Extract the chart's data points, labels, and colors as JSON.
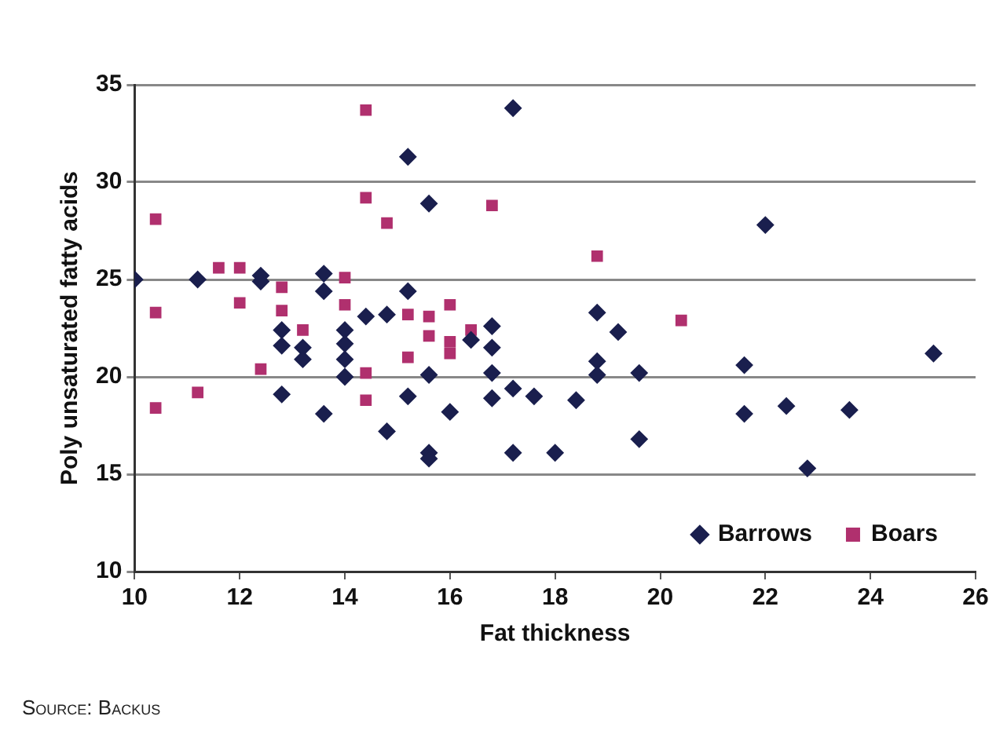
{
  "chart_data": {
    "type": "scatter",
    "xlabel": "Fat thickness",
    "ylabel": "Poly unsaturated fatty acids",
    "xlim": [
      10,
      26
    ],
    "xticks": [
      10,
      12,
      14,
      16,
      18,
      20,
      22,
      24,
      26
    ],
    "ylim": [
      10,
      35
    ],
    "yticks": [
      10,
      15,
      20,
      25,
      30,
      35
    ],
    "grid": "y",
    "legend": "bottom right",
    "annotations": [
      "Source: Backus"
    ],
    "series": [
      {
        "name": "Barrows",
        "color": "#1a1f4e",
        "marker": "diamond",
        "x": [
          10,
          11.2,
          12.4,
          12.4,
          13.6,
          13.6,
          15.2,
          15.6,
          15.2,
          14.4,
          14.8,
          12.8,
          12.8,
          13.2,
          13.2,
          14,
          14,
          14,
          14,
          15.6,
          12.8,
          13.6,
          14.8,
          15.2,
          15.6,
          15.6,
          16,
          17.2,
          18.8,
          16.8,
          16.8,
          16.4,
          19.2,
          18.8,
          18.8,
          19.6,
          16.8,
          17.2,
          16.8,
          17.6,
          18.4,
          17.2,
          18,
          19.6,
          22,
          21.6,
          25.2,
          21.6,
          22.4,
          23.6,
          22.8
        ],
        "values": [
          25,
          25,
          25.2,
          24.9,
          25.3,
          24.4,
          31.3,
          28.9,
          24.4,
          23.1,
          23.2,
          22.4,
          21.6,
          21.5,
          20.9,
          22.4,
          21.7,
          20.9,
          20,
          20.1,
          19.1,
          18.1,
          17.2,
          19,
          16.1,
          15.8,
          18.2,
          33.8,
          23.3,
          22.6,
          21.5,
          21.9,
          22.3,
          20.8,
          20.1,
          20.2,
          20.2,
          19.4,
          18.9,
          19,
          18.8,
          16.1,
          16.1,
          16.8,
          27.8,
          20.6,
          21.2,
          18.1,
          18.5,
          18.3,
          15.3
        ]
      },
      {
        "name": "Boars",
        "color": "#b0306e",
        "marker": "square",
        "x": [
          14.4,
          14.4,
          14.8,
          10.4,
          10.4,
          10.4,
          11.2,
          11.6,
          12,
          12,
          12.8,
          12.8,
          13.2,
          12.4,
          14,
          14,
          14.4,
          14.4,
          15.2,
          15.2,
          15.6,
          15.6,
          16,
          16,
          16,
          16.4,
          16.8,
          18.8,
          20.4
        ],
        "values": [
          33.7,
          29.2,
          27.9,
          28.1,
          23.3,
          18.4,
          19.2,
          25.6,
          25.6,
          23.8,
          24.6,
          23.4,
          22.4,
          20.4,
          25.1,
          23.7,
          20.2,
          18.8,
          23.2,
          21,
          23.1,
          22.1,
          21.8,
          21.2,
          23.7,
          22.4,
          28.8,
          26.2,
          22.9
        ]
      }
    ]
  }
}
